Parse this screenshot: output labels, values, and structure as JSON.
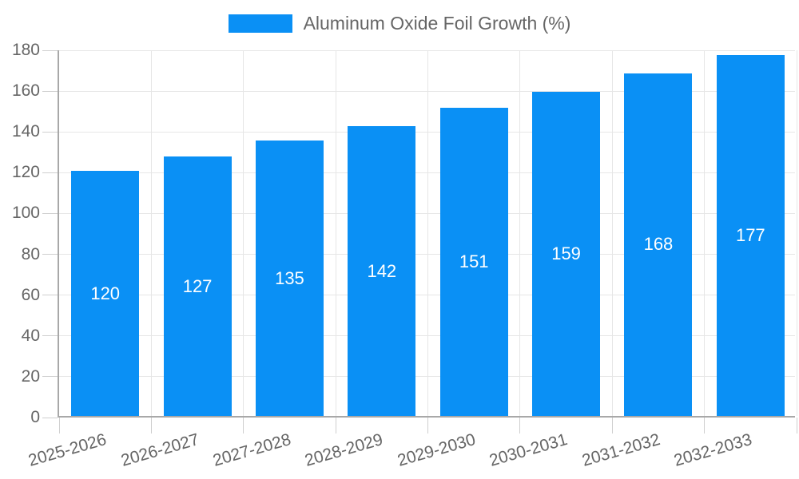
{
  "chart_data": {
    "type": "bar",
    "title": "",
    "legend": {
      "position": "top",
      "label": "Aluminum Oxide Foil Growth (%)"
    },
    "categories": [
      "2025-2026",
      "2026-2027",
      "2027-2028",
      "2028-2029",
      "2029-2030",
      "2030-2031",
      "2031-2032",
      "2032-2033"
    ],
    "values": [
      120,
      127,
      135,
      142,
      151,
      159,
      168,
      177
    ],
    "value_label_style": "white-inside-bar-centered",
    "xlabel": "",
    "ylabel": "",
    "ylim": [
      0,
      180
    ],
    "y_ticks": [
      0,
      20,
      40,
      60,
      80,
      100,
      120,
      140,
      160,
      180
    ],
    "grid": true,
    "x_label_rotation_deg": -16,
    "colors": {
      "bar": "#0a90f5",
      "axis_line": "#a8a8a8",
      "gridline": "#e6e6e6",
      "tick": "#cfcfcf",
      "axis_text": "#666666",
      "legend_text": "#666666",
      "value_text": "#ffffff",
      "background": "#ffffff"
    }
  }
}
